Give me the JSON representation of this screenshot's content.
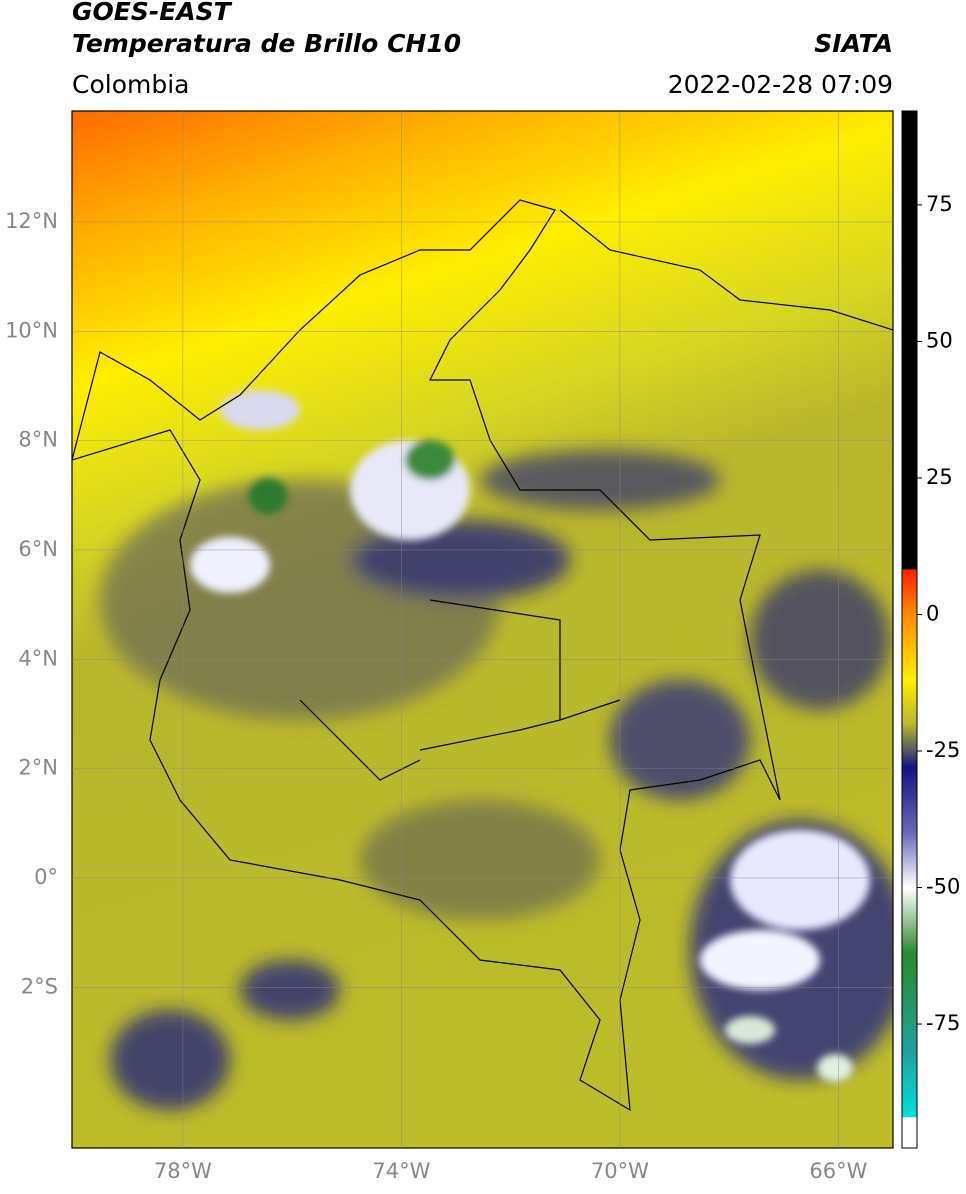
{
  "header": {
    "title": "GOES-EAST",
    "subtitle": "Temperatura de Brillo CH10",
    "agency": "SIATA",
    "region": "Colombia",
    "datetime": "2022-02-28 07:09"
  },
  "map": {
    "xlim": [
      -80.03,
      -65.0
    ],
    "ylim": [
      -4.94,
      14.03
    ],
    "xticks": [
      {
        "value": -78,
        "label": "78°W"
      },
      {
        "value": -74,
        "label": "74°W"
      },
      {
        "value": -70,
        "label": "70°W"
      },
      {
        "value": -66,
        "label": "66°W"
      }
    ],
    "yticks": [
      {
        "value": 12,
        "label": "12°N"
      },
      {
        "value": 10,
        "label": "10°N"
      },
      {
        "value": 8,
        "label": "8°N"
      },
      {
        "value": 6,
        "label": "6°N"
      },
      {
        "value": 4,
        "label": "4°N"
      },
      {
        "value": 2,
        "label": "2°N"
      },
      {
        "value": 0,
        "label": "0°"
      },
      {
        "value": -2,
        "label": "2°S"
      }
    ],
    "grid": true
  },
  "colorbar": {
    "lim": [
      -97.7,
      92.2
    ],
    "ticks": [
      75,
      50,
      25,
      0,
      -25,
      -50,
      -75
    ],
    "stops": [
      {
        "value": 92.2,
        "color": "#000000"
      },
      {
        "value": 8.3,
        "color": "#000000"
      },
      {
        "value": 8.2,
        "color": "#ff2000"
      },
      {
        "value": 0,
        "color": "#ff8c00"
      },
      {
        "value": -12,
        "color": "#ffee00"
      },
      {
        "value": -20,
        "color": "#b8b830"
      },
      {
        "value": -25,
        "color": "#555566"
      },
      {
        "value": -28,
        "color": "#121280"
      },
      {
        "value": -40,
        "color": "#6a6ab8"
      },
      {
        "value": -50,
        "color": "#ffffff"
      },
      {
        "value": -62,
        "color": "#2a8a2a"
      },
      {
        "value": -80,
        "color": "#22a0a0"
      },
      {
        "value": -92,
        "color": "#00e0e0"
      },
      {
        "value": -92.1,
        "color": "#ffffff"
      },
      {
        "value": -97.7,
        "color": "#ffffff"
      }
    ]
  }
}
